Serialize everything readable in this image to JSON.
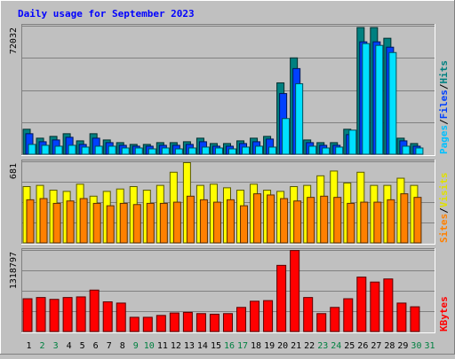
{
  "chart_data": {
    "type": "bar",
    "title": "Daily usage for September 2023",
    "title_color": "#0000ff",
    "categories": [
      "1",
      "2",
      "3",
      "4",
      "5",
      "6",
      "7",
      "8",
      "9",
      "10",
      "11",
      "12",
      "13",
      "14",
      "15",
      "16",
      "17",
      "18",
      "19",
      "20",
      "21",
      "22",
      "23",
      "24",
      "25",
      "26",
      "27",
      "28",
      "29",
      "30",
      "31"
    ],
    "weekend_days": [
      "2",
      "3",
      "9",
      "10",
      "16",
      "17",
      "23",
      "24",
      "30",
      "31"
    ],
    "weekday_label_color": "#000000",
    "weekend_label_color": "#008040",
    "grid": true,
    "panels": [
      {
        "name": "hits-files-pages",
        "max_label": "72032",
        "ymax": 72032,
        "series": [
          {
            "name": "Hits",
            "color": "#008080",
            "values": [
              14000,
              9000,
              10000,
              11500,
              7500,
              11500,
              8000,
              6500,
              5500,
              5500,
              6500,
              6500,
              7000,
              9000,
              6000,
              6000,
              7500,
              9000,
              10000,
              40000,
              54000,
              8000,
              6500,
              6500,
              14000,
              71000,
              71000,
              65000,
              9000,
              6000,
              0
            ]
          },
          {
            "name": "Files",
            "color": "#0040ff",
            "values": [
              11500,
              7000,
              8000,
              9500,
              5500,
              9000,
              6500,
              5000,
              4500,
              4500,
              5000,
              5000,
              5500,
              7000,
              4500,
              4500,
              6000,
              7000,
              8500,
              34000,
              48000,
              6500,
              5000,
              5000,
              11000,
              63000,
              63000,
              60000,
              7500,
              4500,
              0
            ]
          },
          {
            "name": "Pages",
            "color": "#00e0ff",
            "values": [
              5500,
              5000,
              4500,
              5000,
              4000,
              4500,
              4500,
              3500,
              3500,
              3000,
              3500,
              3000,
              3500,
              4000,
              3500,
              3000,
              4000,
              4500,
              4000,
              20000,
              39500,
              4500,
              3500,
              4000,
              13500,
              62000,
              61000,
              57000,
              4500,
              3500,
              0
            ]
          }
        ],
        "legend": [
          {
            "text": "Pages",
            "color": "#00c0ff"
          },
          {
            "text": "Files",
            "color": "#0040ff"
          },
          {
            "text": "Hits",
            "color": "#008080"
          }
        ]
      },
      {
        "name": "visits-sites",
        "max_label": "681",
        "ymax": 681,
        "series": [
          {
            "name": "Visits",
            "color": "#ffff00",
            "values": [
              470,
              480,
              440,
              430,
              490,
              390,
              430,
              450,
              470,
              440,
              480,
              590,
              670,
              480,
              490,
              460,
              440,
              490,
              440,
              430,
              470,
              480,
              560,
              600,
              500,
              590,
              480,
              480,
              540,
              480,
              0
            ]
          },
          {
            "name": "Sites",
            "color": "#ff8000",
            "values": [
              360,
              370,
              330,
              350,
              370,
              330,
              310,
              330,
              320,
              330,
              330,
              340,
              390,
              360,
              340,
              360,
              310,
              410,
              400,
              370,
              350,
              380,
              390,
              380,
              330,
              340,
              340,
              360,
              410,
              380,
              0
            ]
          }
        ],
        "legend": [
          {
            "text": "Sites",
            "color": "#ff8000"
          },
          {
            "text": "Visits",
            "color": "#e0e000"
          }
        ]
      },
      {
        "name": "kbytes",
        "max_label": "1318797",
        "ymax": 1318797,
        "series": [
          {
            "name": "KBytes",
            "color": "#ff0000",
            "values": [
              530000,
              550000,
              520000,
              550000,
              560000,
              670000,
              480000,
              460000,
              230000,
              230000,
              260000,
              300000,
              310000,
              290000,
              280000,
              290000,
              390000,
              490000,
              500000,
              1070000,
              1310000,
              550000,
              290000,
              390000,
              530000,
              880000,
              800000,
              850000,
              460000,
              400000,
              0
            ]
          }
        ],
        "legend": [
          {
            "text": "KBytes",
            "color": "#ff0000"
          }
        ]
      }
    ]
  }
}
